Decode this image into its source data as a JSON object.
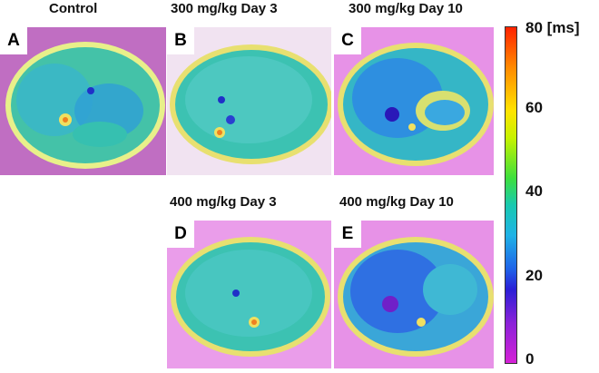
{
  "panels": [
    {
      "letter": "A",
      "title": "Control"
    },
    {
      "letter": "B",
      "title": "300 mg/kg Day 3"
    },
    {
      "letter": "C",
      "title": "300 mg/kg Day 10"
    },
    {
      "letter": "D",
      "title": "400 mg/kg Day 3"
    },
    {
      "letter": "E",
      "title": "400 mg/kg Day 10"
    }
  ],
  "colorbar": {
    "unit": "[ms]",
    "ticks": [
      "80",
      "60",
      "40",
      "20",
      "0"
    ],
    "colors": [
      "#ff2200",
      "#ff8a00",
      "#ffe400",
      "#3ddf3d",
      "#19c9b0",
      "#1f63e8",
      "#2a1fd6",
      "#d522d6"
    ]
  }
}
